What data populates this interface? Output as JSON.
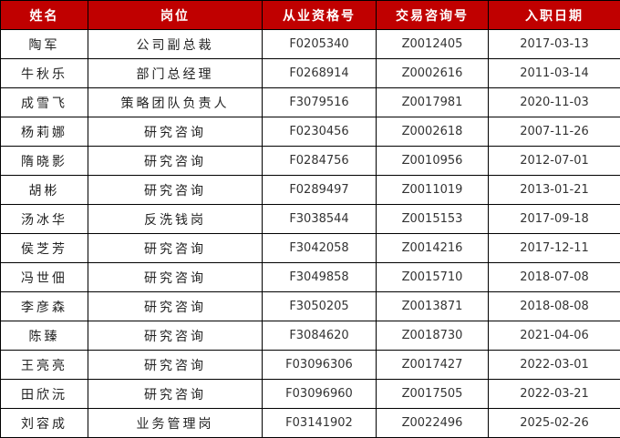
{
  "header_color": "#c00000",
  "columns": [
    "姓名",
    "岗位",
    "从业资格号",
    "交易咨询号",
    "入职日期"
  ],
  "rows": [
    [
      "陶军",
      "公司副总裁",
      "F0205340",
      "Z0012405",
      "2017-03-13"
    ],
    [
      "牛秋乐",
      "部门总经理",
      "F0268914",
      "Z0002616",
      "2011-03-14"
    ],
    [
      "成雪飞",
      "策略团队负责人",
      "F3079516",
      "Z0017981",
      "2020-11-03"
    ],
    [
      "杨莉娜",
      "研究咨询",
      "F0230456",
      "Z0002618",
      "2007-11-26"
    ],
    [
      "隋晓影",
      "研究咨询",
      "F0284756",
      "Z0010956",
      "2012-07-01"
    ],
    [
      "胡彬",
      "研究咨询",
      "F0289497",
      "Z0011019",
      "2013-01-21"
    ],
    [
      "汤冰华",
      "反洗钱岗",
      "F3038544",
      "Z0015153",
      "2017-09-18"
    ],
    [
      "侯芝芳",
      "研究咨询",
      "F3042058",
      "Z0014216",
      "2017-12-11"
    ],
    [
      "冯世佃",
      "研究咨询",
      "F3049858",
      "Z0015710",
      "2018-07-08"
    ],
    [
      "李彦森",
      "研究咨询",
      "F3050205",
      "Z0013871",
      "2018-08-08"
    ],
    [
      "陈臻",
      "研究咨询",
      "F3084620",
      "Z0018730",
      "2021-04-06"
    ],
    [
      "王亮亮",
      "研究咨询",
      "F03096306",
      "Z0017427",
      "2022-03-01"
    ],
    [
      "田欣沅",
      "研究咨询",
      "F03096960",
      "Z0017505",
      "2022-03-21"
    ],
    [
      "刘容成",
      "业务管理岗",
      "F03141902",
      "Z0022496",
      "2025-02-26"
    ]
  ]
}
